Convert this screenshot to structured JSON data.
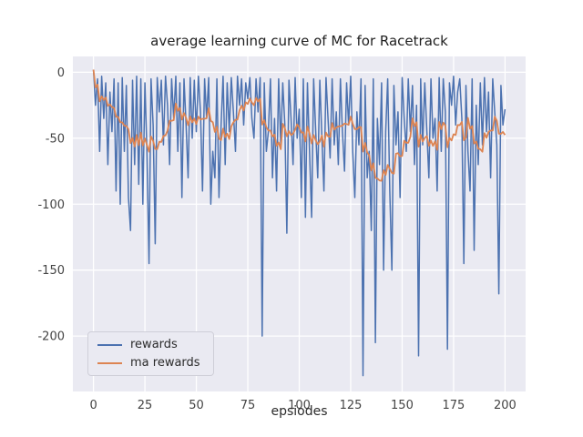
{
  "chart_data": {
    "type": "line",
    "title": "average learning curve of MC for Racetrack",
    "xlabel": "epsiodes",
    "ylabel": "",
    "x_start": 0,
    "x_step": 1,
    "x_range": [
      -10,
      210
    ],
    "y_range": [
      -242,
      12
    ],
    "xticks": [
      0,
      25,
      50,
      75,
      100,
      125,
      150,
      175,
      200
    ],
    "yticks": [
      0,
      -50,
      -100,
      -150,
      -200
    ],
    "grid": true,
    "legend_position": "lower left",
    "axes_bg_color": "#eaeaf2",
    "grid_color": "#ffffff",
    "tick_text_color": "#444444",
    "series": [
      {
        "name": "rewards",
        "color": "#4c72b0",
        "values": [
          2,
          -25,
          -5,
          -60,
          -3,
          -35,
          -8,
          -70,
          -15,
          -45,
          -5,
          -90,
          -8,
          -100,
          -4,
          -60,
          -10,
          -95,
          -120,
          -6,
          -70,
          -3,
          -85,
          -5,
          -100,
          -8,
          -60,
          -145,
          -5,
          -40,
          -130,
          -4,
          -30,
          -6,
          -55,
          -3,
          -25,
          -70,
          -5,
          -35,
          -3,
          -60,
          -8,
          -95,
          -5,
          -40,
          -80,
          -4,
          -50,
          -6,
          -45,
          -3,
          -30,
          -90,
          -5,
          -35,
          -4,
          -100,
          -60,
          -80,
          -5,
          -95,
          -40,
          -3,
          -70,
          -8,
          -45,
          -4,
          -30,
          -60,
          -3,
          -25,
          -5,
          -40,
          -8,
          -20,
          -4,
          -35,
          -50,
          -5,
          -30,
          -4,
          -200,
          -8,
          -60,
          -45,
          -5,
          -80,
          -35,
          -90,
          -5,
          -55,
          -8,
          -40,
          -122,
          -6,
          -35,
          -70,
          -4,
          -50,
          -28,
          -95,
          -5,
          -110,
          -8,
          -60,
          -110,
          -5,
          -45,
          -80,
          -6,
          -50,
          -90,
          -4,
          -35,
          -65,
          -5,
          -55,
          -30,
          -70,
          -5,
          -45,
          -75,
          -8,
          -40,
          -3,
          -60,
          -95,
          -30,
          -55,
          -5,
          -230,
          -10,
          -80,
          -60,
          -120,
          -5,
          -205,
          -35,
          -70,
          -8,
          -150,
          -45,
          -5,
          -90,
          -150,
          -10,
          -55,
          -30,
          -95,
          -4,
          -35,
          -60,
          -5,
          -45,
          -10,
          -70,
          -25,
          -215,
          -5,
          -55,
          -8,
          -45,
          -80,
          -5,
          -50,
          -35,
          -90,
          -4,
          -60,
          -5,
          -30,
          -210,
          -8,
          -25,
          -3,
          -40,
          -15,
          -5,
          -35,
          -145,
          -10,
          -60,
          -90,
          -5,
          -135,
          -25,
          -70,
          -8,
          -55,
          -4,
          -45,
          -15,
          -80,
          -5,
          -30,
          -55,
          -168,
          -10,
          -40,
          -28
        ]
      },
      {
        "name": "ma rewards",
        "color": "#dd8452",
        "derived": "moving_average",
        "of": "rewards",
        "window": 10
      }
    ]
  }
}
